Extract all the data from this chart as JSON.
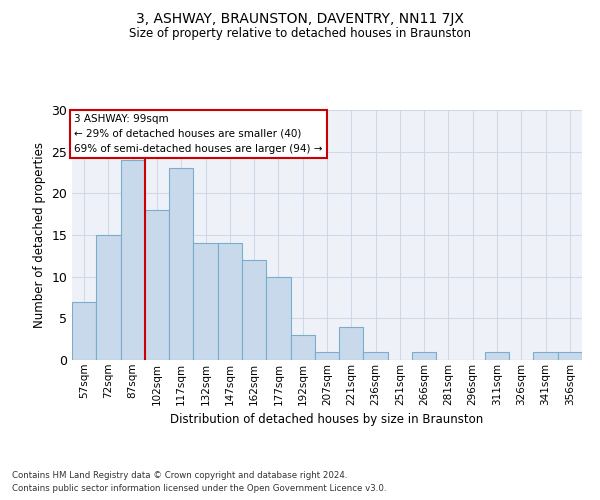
{
  "title": "3, ASHWAY, BRAUNSTON, DAVENTRY, NN11 7JX",
  "subtitle": "Size of property relative to detached houses in Braunston",
  "xlabel": "Distribution of detached houses by size in Braunston",
  "ylabel": "Number of detached properties",
  "categories": [
    "57sqm",
    "72sqm",
    "87sqm",
    "102sqm",
    "117sqm",
    "132sqm",
    "147sqm",
    "162sqm",
    "177sqm",
    "192sqm",
    "207sqm",
    "221sqm",
    "236sqm",
    "251sqm",
    "266sqm",
    "281sqm",
    "296sqm",
    "311sqm",
    "326sqm",
    "341sqm",
    "356sqm"
  ],
  "values": [
    7,
    15,
    24,
    18,
    23,
    14,
    14,
    12,
    10,
    3,
    1,
    4,
    1,
    0,
    1,
    0,
    0,
    1,
    0,
    1,
    1
  ],
  "bar_color": "#c9d9ec",
  "bar_edge_color": "#7aadcc",
  "vline_x": 2.5,
  "vline_color": "#cc0000",
  "ylim": [
    0,
    30
  ],
  "yticks": [
    0,
    5,
    10,
    15,
    20,
    25,
    30
  ],
  "annotation_title": "3 ASHWAY: 99sqm",
  "annotation_line1": "← 29% of detached houses are smaller (40)",
  "annotation_line2": "69% of semi-detached houses are larger (94) →",
  "annotation_box_color": "#ffffff",
  "annotation_box_edge": "#cc0000",
  "grid_color": "#d0d8e8",
  "background_color": "#eef2f8",
  "footer1": "Contains HM Land Registry data © Crown copyright and database right 2024.",
  "footer2": "Contains public sector information licensed under the Open Government Licence v3.0."
}
